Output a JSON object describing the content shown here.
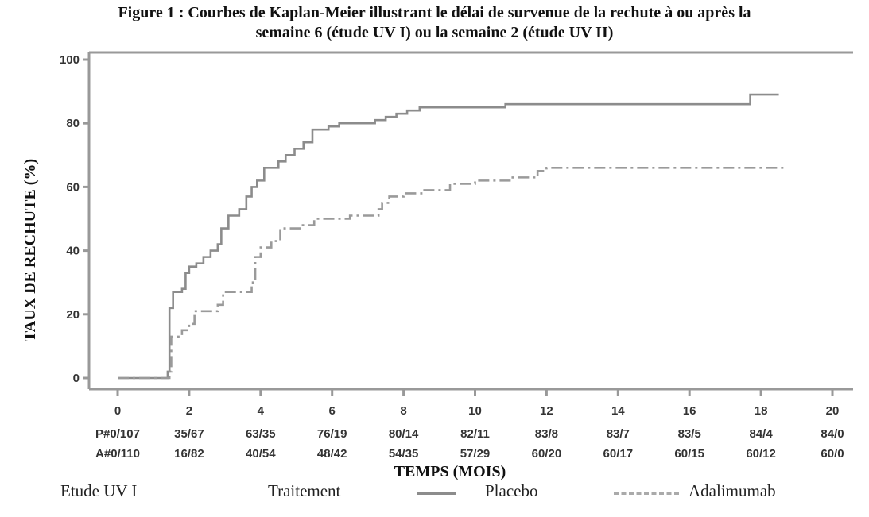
{
  "title_line1": "Figure 1 : Courbes de Kaplan-Meier illustrant le délai de survenue de la rechute à ou après la",
  "title_line2": "semaine 6 (étude UV I) ou la semaine 2 (étude UV II)",
  "chart_data": {
    "type": "line",
    "title": "Figure 1 : Courbes de Kaplan-Meier illustrant le délai de survenue de la rechute à ou après la semaine 6 (étude UV I) ou la semaine 2 (étude UV II)",
    "xlabel": "TEMPS (MOIS)",
    "ylabel": "TAUX DE RECHUTE (%)",
    "xlim": [
      0,
      20
    ],
    "ylim": [
      0,
      100
    ],
    "x_ticks": [
      0,
      2,
      4,
      6,
      8,
      10,
      12,
      14,
      16,
      18,
      20
    ],
    "y_ticks": [
      0,
      20,
      40,
      60,
      80,
      100
    ],
    "grid": false,
    "series": [
      {
        "name": "Placebo",
        "color": "#8c8c8c",
        "style": "solid",
        "points": [
          [
            0,
            0
          ],
          [
            1.3,
            0
          ],
          [
            1.4,
            2
          ],
          [
            1.45,
            22
          ],
          [
            1.55,
            27
          ],
          [
            1.8,
            28
          ],
          [
            1.9,
            33
          ],
          [
            2.0,
            35
          ],
          [
            2.2,
            36
          ],
          [
            2.4,
            38
          ],
          [
            2.6,
            40
          ],
          [
            2.8,
            42
          ],
          [
            2.9,
            47
          ],
          [
            3.1,
            51
          ],
          [
            3.4,
            53
          ],
          [
            3.6,
            57
          ],
          [
            3.75,
            60
          ],
          [
            3.9,
            62
          ],
          [
            4.1,
            66
          ],
          [
            4.5,
            68
          ],
          [
            4.7,
            70
          ],
          [
            4.95,
            72
          ],
          [
            5.2,
            74
          ],
          [
            5.45,
            78
          ],
          [
            5.9,
            79
          ],
          [
            6.2,
            80
          ],
          [
            7.2,
            81
          ],
          [
            7.5,
            82
          ],
          [
            7.8,
            83
          ],
          [
            8.1,
            84
          ],
          [
            8.45,
            85
          ],
          [
            10.85,
            86
          ],
          [
            17.7,
            89
          ],
          [
            18.5,
            89
          ]
        ]
      },
      {
        "name": "Adalimumab",
        "color": "#9a9a9a",
        "style": "dashed",
        "points": [
          [
            0,
            0
          ],
          [
            1.3,
            0
          ],
          [
            1.45,
            2
          ],
          [
            1.5,
            13
          ],
          [
            1.8,
            15
          ],
          [
            2.0,
            17
          ],
          [
            2.15,
            21
          ],
          [
            2.6,
            21
          ],
          [
            2.8,
            23
          ],
          [
            2.95,
            27
          ],
          [
            3.75,
            30
          ],
          [
            3.85,
            38
          ],
          [
            4.0,
            41
          ],
          [
            4.3,
            43
          ],
          [
            4.55,
            47
          ],
          [
            5.15,
            48
          ],
          [
            5.5,
            50
          ],
          [
            6.5,
            51
          ],
          [
            7.3,
            53
          ],
          [
            7.4,
            55
          ],
          [
            7.6,
            57
          ],
          [
            8.0,
            58
          ],
          [
            8.5,
            59
          ],
          [
            9.3,
            61
          ],
          [
            10.0,
            62
          ],
          [
            11.05,
            63
          ],
          [
            11.75,
            65
          ],
          [
            12.0,
            66
          ],
          [
            18.7,
            66
          ]
        ]
      }
    ],
    "risk_table": {
      "rows": [
        {
          "label": "P",
          "values": [
            "#0/107",
            "35/67",
            "63/35",
            "76/19",
            "80/14",
            "82/11",
            "83/8",
            "83/7",
            "83/5",
            "84/4",
            "84/0"
          ]
        },
        {
          "label": "A",
          "values": [
            "#0/110",
            "16/82",
            "40/54",
            "48/42",
            "54/35",
            "57/29",
            "60/20",
            "60/17",
            "60/15",
            "60/12",
            "60/0"
          ]
        }
      ]
    }
  },
  "legend": {
    "study": "Etude UV I",
    "treatment_label": "Traitement",
    "placebo": "Placebo",
    "adalimumab": "Adalimumab"
  }
}
